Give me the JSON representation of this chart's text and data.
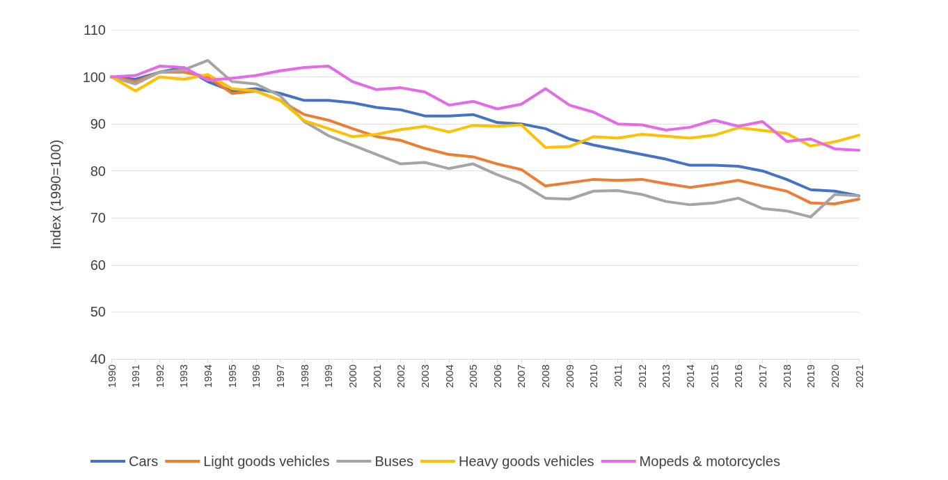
{
  "chart_data": {
    "type": "line",
    "ylabel": "Index (1990=100)",
    "categories": [
      "1990",
      "1991",
      "1992",
      "1993",
      "1994",
      "1995",
      "1996",
      "1997",
      "1998",
      "1999",
      "2000",
      "2001",
      "2002",
      "2003",
      "2004",
      "2005",
      "2006",
      "2007",
      "2008",
      "2009",
      "2010",
      "2011",
      "2012",
      "2013",
      "2014",
      "2015",
      "2016",
      "2017",
      "2018",
      "2019",
      "2020",
      "2021"
    ],
    "series": [
      {
        "name": "Cars",
        "color": "#4472c4",
        "values": [
          100,
          99.5,
          101,
          102,
          99,
          97,
          97.5,
          96.5,
          95,
          95,
          94.5,
          93.5,
          93,
          91.7,
          91.7,
          92,
          90.3,
          90,
          89,
          86.8,
          85.5,
          84.5,
          83.5,
          82.5,
          81.2,
          81.2,
          81,
          80,
          78.2,
          76,
          75.7,
          74.7
        ]
      },
      {
        "name": "Light goods vehicles",
        "color": "#ed7d31",
        "values": [
          100,
          99,
          101,
          101,
          100,
          96.5,
          97,
          95,
          92,
          90.8,
          89,
          87.3,
          86.5,
          84.8,
          83.5,
          83,
          81.5,
          80.3,
          76.8,
          77.5,
          78.2,
          78,
          78.2,
          77.3,
          76.5,
          77.2,
          78,
          76.8,
          75.7,
          73.2,
          73,
          74
        ]
      },
      {
        "name": "Buses",
        "color": "#a5a5a5",
        "values": [
          100,
          98.5,
          101,
          101.5,
          103.5,
          99,
          98.5,
          96,
          90.5,
          87.5,
          85.5,
          83.5,
          81.5,
          81.8,
          80.5,
          81.5,
          79.2,
          77.3,
          74.2,
          74,
          75.7,
          75.8,
          75,
          73.5,
          72.8,
          73.2,
          74.2,
          72,
          71.5,
          70.2,
          75,
          74.7
        ]
      },
      {
        "name": "Heavy goods vehicles",
        "color": "#ffc000",
        "values": [
          100,
          97,
          100,
          99.5,
          100.5,
          97.5,
          97,
          95,
          90.7,
          89,
          87.3,
          87.8,
          88.8,
          89.5,
          88.3,
          89.7,
          89.5,
          89.8,
          85,
          85.2,
          87.3,
          87,
          87.8,
          87.4,
          87,
          87.6,
          89.2,
          88.6,
          88,
          85.3,
          86.2,
          87.6
        ]
      },
      {
        "name": "Mopeds & motorcycles",
        "color": "#e56ae8",
        "values": [
          100,
          100.3,
          102.3,
          102,
          99.3,
          99.7,
          100.3,
          101.3,
          102,
          102.3,
          99,
          97.3,
          97.7,
          96.8,
          94,
          94.8,
          93.2,
          94.2,
          97.5,
          94,
          92.5,
          90,
          89.8,
          88.7,
          89.3,
          90.8,
          89.5,
          90.5,
          86.3,
          86.8,
          84.7,
          84.4
        ]
      }
    ],
    "ylim": [
      40,
      110
    ],
    "yticks": [
      40,
      50,
      60,
      70,
      80,
      90,
      100,
      110
    ],
    "grid": "y",
    "legend": "bottom",
    "marker": "none",
    "line_style": "solid"
  }
}
